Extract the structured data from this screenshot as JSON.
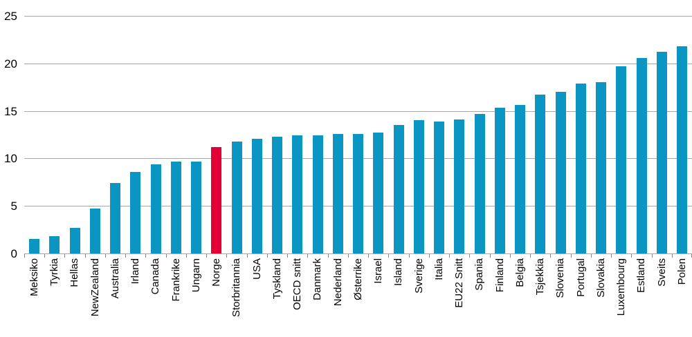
{
  "chart_data": {
    "type": "bar",
    "title": "",
    "categories": [
      "Meksiko",
      "Tyrkia",
      "Hellas",
      "NewZealand",
      "Australia",
      "Irland",
      "Canada",
      "Frankrike",
      "Ungarn",
      "Norge",
      "Storbritannia",
      "USA",
      "Tyskland",
      "OECD snitt",
      "Danmark",
      "Nederland",
      "Østerrike",
      "Israel",
      "Island",
      "Sverige",
      "Italia",
      "EU22 Snitt",
      "Spania",
      "Finland",
      "Belgia",
      "Tsjekkia",
      "Slovenia",
      "Portugal",
      "Slovakia",
      "Luxembourg",
      "Estland",
      "Sveits",
      "Polen"
    ],
    "values": [
      1.5,
      1.8,
      2.7,
      4.7,
      7.4,
      8.6,
      9.4,
      9.7,
      9.7,
      11.2,
      11.8,
      12.1,
      12.3,
      12.4,
      12.4,
      12.6,
      12.6,
      12.7,
      13.5,
      14.0,
      13.9,
      14.1,
      14.7,
      15.3,
      15.6,
      16.7,
      17.0,
      17.9,
      18.0,
      19.7,
      20.6,
      21.2,
      21.8
    ],
    "highlight_category": "Norge",
    "xlabel": "",
    "ylabel": "",
    "ylim": [
      0,
      25
    ],
    "yticks": [
      0,
      5,
      10,
      15,
      20,
      25
    ],
    "grid": "horizontal",
    "legend": "none",
    "x_label_rotation": 90,
    "colors": {
      "bar": "#0a95c2",
      "highlight": "#e40037",
      "gridline": "#a6a6a6",
      "axis": "#a6a6a6",
      "tick_mark": "#808080",
      "text": "#000000"
    }
  }
}
